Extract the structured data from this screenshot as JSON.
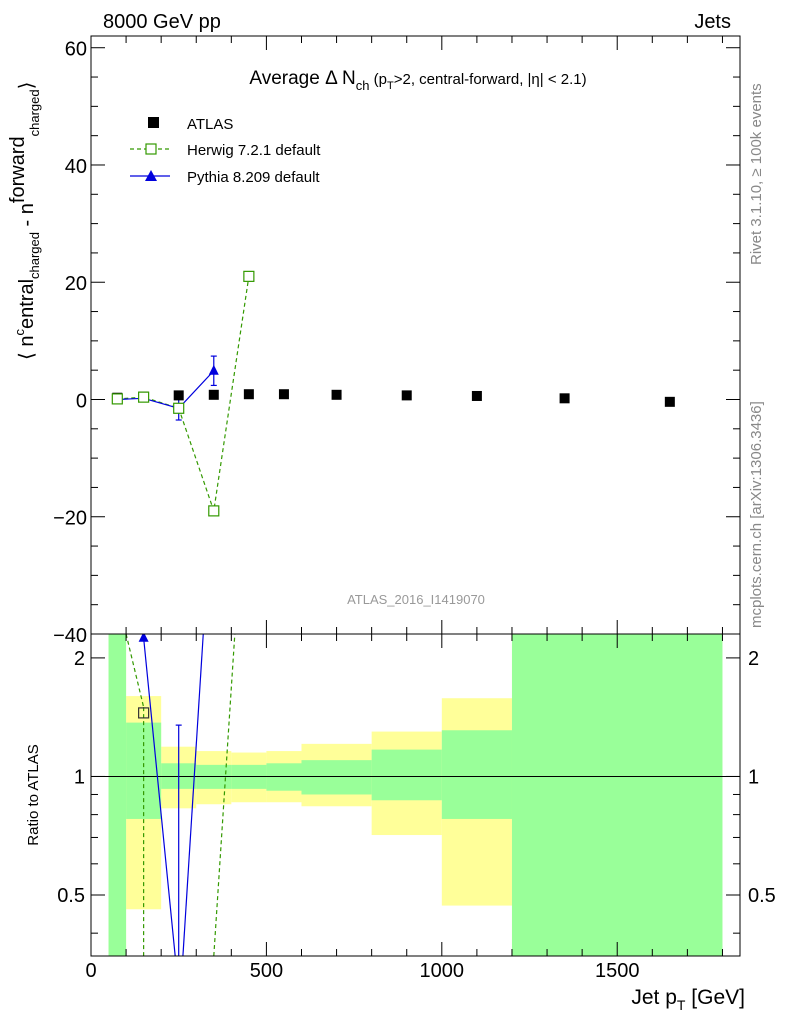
{
  "header": {
    "left": "8000 GeV pp",
    "right": "Jets",
    "side_rivet": "Rivet 3.1.10, ≥ 100k events",
    "side_mcplots": "mcplots.cern.ch [arXiv:1306.3436]"
  },
  "chart_data": {
    "type": "scatter",
    "title": "Average Δ N_ch (p_T>2, central-forward, |η| < 2.1)",
    "title_main": "Average Δ N",
    "title_sub": "ch",
    "title_rest1": " (p",
    "title_rest_sub": "T",
    "title_rest2": ">2, central-forward, |η| < 2.1)",
    "ylabel": "⟨ n central charged - n forward charged ⟩",
    "ylabel_parts": [
      "⟨ n",
      "c",
      "entral",
      "charged",
      " - n",
      "forward",
      "charged",
      "⟩"
    ],
    "watermark": "ATLAS_2016_I1419070",
    "xlabel": "Jet p_T [GeV]",
    "xlabel_main": "Jet p",
    "xlabel_sub": "T",
    "xlabel_unit": " [GeV]",
    "xlim": [
      0,
      1850
    ],
    "ylim": [
      -40,
      62
    ],
    "x_ticks": [
      0,
      500,
      1000,
      1500
    ],
    "x_tick_labels": [
      "0",
      "500",
      "1000",
      "1500"
    ],
    "y_ticks": [
      -40,
      -20,
      0,
      20,
      40,
      60
    ],
    "y_tick_labels": [
      "−40",
      "−20",
      "0",
      "20",
      "40",
      "60"
    ],
    "legend_position": "top-left",
    "series": [
      {
        "name": "ATLAS",
        "color": "#000000",
        "marker": "filled-square",
        "x": [
          75,
          150,
          250,
          350,
          450,
          550,
          700,
          900,
          1100,
          1350,
          1650
        ],
        "y": [
          0.3,
          0.5,
          0.7,
          0.8,
          0.9,
          0.9,
          0.8,
          0.7,
          0.6,
          0.2,
          -0.4
        ]
      },
      {
        "name": "Herwig 7.2.1 default",
        "color": "#339900",
        "marker": "open-square",
        "dashed": true,
        "x": [
          75,
          150,
          250,
          350,
          450
        ],
        "y": [
          0.1,
          0.4,
          -1.5,
          -19.0,
          21.0
        ]
      },
      {
        "name": "Pythia 8.209 default",
        "color": "#0000dd",
        "marker": "filled-triangle",
        "x": [
          75,
          150,
          250,
          350
        ],
        "y": [
          0.0,
          0.2,
          -1.5,
          4.9
        ],
        "yerr": [
          0.2,
          0.2,
          2.0,
          2.5
        ]
      }
    ],
    "ratio": {
      "ylabel": "Ratio to ATLAS",
      "ylim": [
        0.35,
        2.3
      ],
      "y_ticks": [
        0.5,
        1,
        2
      ],
      "y_tick_labels": [
        "0.5",
        "1",
        "2"
      ],
      "bins": [
        {
          "x0": 50,
          "x1": 100,
          "y_lo": 0.35,
          "y_hi": 2.3,
          "g_lo": 0.35,
          "g_hi": 2.3
        },
        {
          "x0": 100,
          "x1": 200,
          "y_lo": 0.46,
          "y_hi": 1.6,
          "g_lo": 0.78,
          "g_hi": 1.37
        },
        {
          "x0": 200,
          "x1": 300,
          "y_lo": 0.83,
          "y_hi": 1.19,
          "g_lo": 0.93,
          "g_hi": 1.08
        },
        {
          "x0": 300,
          "x1": 400,
          "y_lo": 0.85,
          "y_hi": 1.16,
          "g_lo": 0.93,
          "g_hi": 1.07
        },
        {
          "x0": 400,
          "x1": 500,
          "y_lo": 0.86,
          "y_hi": 1.15,
          "g_lo": 0.93,
          "g_hi": 1.07
        },
        {
          "x0": 500,
          "x1": 600,
          "y_lo": 0.86,
          "y_hi": 1.16,
          "g_lo": 0.92,
          "g_hi": 1.08
        },
        {
          "x0": 600,
          "x1": 800,
          "y_lo": 0.84,
          "y_hi": 1.21,
          "g_lo": 0.9,
          "g_hi": 1.1
        },
        {
          "x0": 800,
          "x1": 1000,
          "y_lo": 0.71,
          "y_hi": 1.3,
          "g_lo": 0.87,
          "g_hi": 1.17
        },
        {
          "x0": 1000,
          "x1": 1200,
          "y_lo": 0.47,
          "y_hi": 1.58,
          "g_lo": 0.78,
          "g_hi": 1.31
        },
        {
          "x0": 1200,
          "x1": 1800,
          "y_lo": 0.35,
          "y_hi": 2.3,
          "g_lo": 0.35,
          "g_hi": 2.3
        }
      ],
      "herwig": {
        "lines": [
          [
            [
              100,
              2.3
            ],
            [
              150,
              1.5
            ]
          ],
          [
            [
              150,
              1.5
            ],
            [
              150,
              0.35
            ]
          ],
          [
            [
              350,
              0.35
            ],
            [
              410,
              2.3
            ]
          ]
        ],
        "point": {
          "x": 150,
          "y": 1.45
        }
      },
      "pythia": {
        "lines": [
          [
            [
              150,
              2.25
            ],
            [
              150,
              2.3
            ]
          ],
          [
            [
              150,
              2.25
            ],
            [
              240,
              0.35
            ]
          ],
          [
            [
              262,
              0.35
            ],
            [
              320,
              2.3
            ]
          ]
        ],
        "point": {
          "x": 150,
          "y": 2.25
        },
        "errbar": {
          "x": 250,
          "y_lo": 0.35,
          "y_hi": 1.35
        }
      }
    }
  }
}
